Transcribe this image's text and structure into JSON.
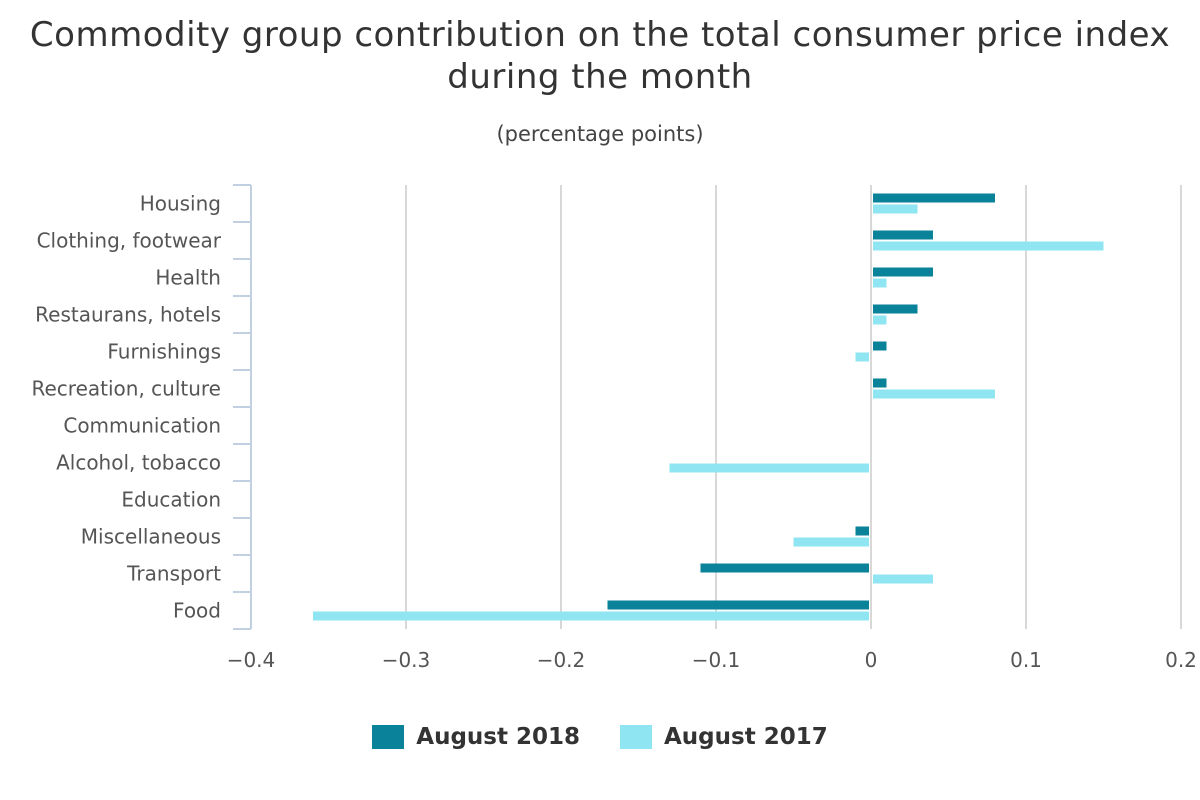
{
  "chart_data": {
    "type": "bar",
    "orientation": "horizontal",
    "title": "Commodity group contribution on the total consumer price index during the month",
    "subtitle": "(percentage points)",
    "categories": [
      "Housing",
      "Clothing, footwear",
      "Health",
      "Restaurans, hotels",
      "Furnishings",
      "Recreation, culture",
      "Communication",
      "Alcohol, tobacco",
      "Education",
      "Miscellaneous",
      "Transport",
      "Food"
    ],
    "series": [
      {
        "name": "August 2018",
        "color": "#0a8299",
        "values": [
          0.08,
          0.04,
          0.04,
          0.03,
          0.01,
          0.01,
          0,
          0,
          0,
          -0.01,
          -0.11,
          -0.17
        ]
      },
      {
        "name": "August 2017",
        "color": "#8fe5f2",
        "values": [
          0.03,
          0.15,
          0.01,
          0.01,
          -0.01,
          0.08,
          0,
          -0.13,
          0,
          -0.05,
          0.04,
          -0.36
        ]
      }
    ],
    "xlim": [
      -0.4,
      0.2
    ],
    "x_ticks": [
      -0.4,
      -0.3,
      -0.2,
      -0.1,
      0,
      0.1,
      0.2
    ],
    "x_tick_labels": [
      "−0.4",
      "−0.3",
      "−0.2",
      "−0.1",
      "0",
      "0.1",
      "0.2"
    ],
    "grid": true,
    "legend_position": "bottom"
  }
}
